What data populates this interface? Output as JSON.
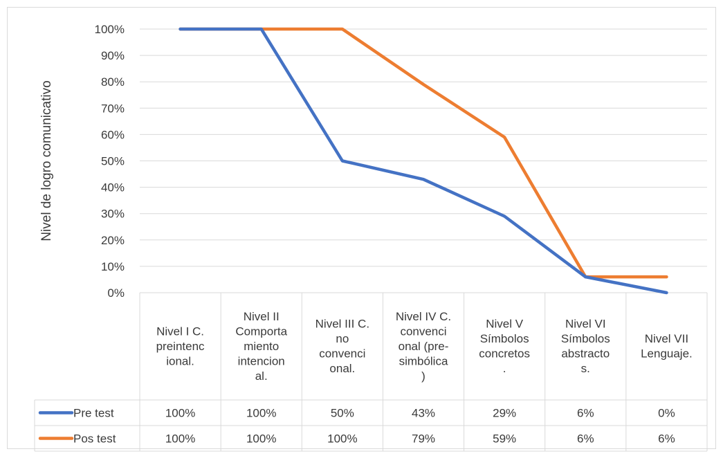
{
  "colors": {
    "pre": "#4472C4",
    "pos": "#ED7D31",
    "grid": "#d9d9d9",
    "text": "#3a3a3a"
  },
  "chart_data": {
    "type": "line",
    "title": "",
    "xlabel": "",
    "ylabel": "Nivel de logro comunicativo",
    "ylim": [
      0,
      100
    ],
    "ytick_labels": [
      "0%",
      "10%",
      "20%",
      "30%",
      "40%",
      "50%",
      "60%",
      "70%",
      "80%",
      "90%",
      "100%"
    ],
    "grid": true,
    "legend": "data-table",
    "categories": [
      [
        "Nivel I C.",
        "preintenc",
        "ional."
      ],
      [
        "Nivel II",
        "Comporta",
        "miento",
        "intencion",
        "al."
      ],
      [
        "Nivel III C.",
        "no",
        "convenci",
        "onal."
      ],
      [
        "Nivel IV C.",
        "convenci",
        "onal (pre-",
        "simbólica",
        ")"
      ],
      [
        "Nivel V",
        "Símbolos",
        "concretos",
        "."
      ],
      [
        "Nivel VI",
        "Símbolos",
        "abstracto",
        "s."
      ],
      [
        "Nivel VII",
        "Lenguaje."
      ]
    ],
    "series": [
      {
        "name": "Pre test",
        "values": [
          100,
          100,
          50,
          43,
          29,
          6,
          0
        ],
        "labels": [
          "100%",
          "100%",
          "50%",
          "43%",
          "29%",
          "6%",
          "0%"
        ]
      },
      {
        "name": "Pos test",
        "values": [
          100,
          100,
          100,
          79,
          59,
          6,
          6
        ],
        "labels": [
          "100%",
          "100%",
          "100%",
          "79%",
          "59%",
          "6%",
          "6%"
        ]
      }
    ]
  }
}
